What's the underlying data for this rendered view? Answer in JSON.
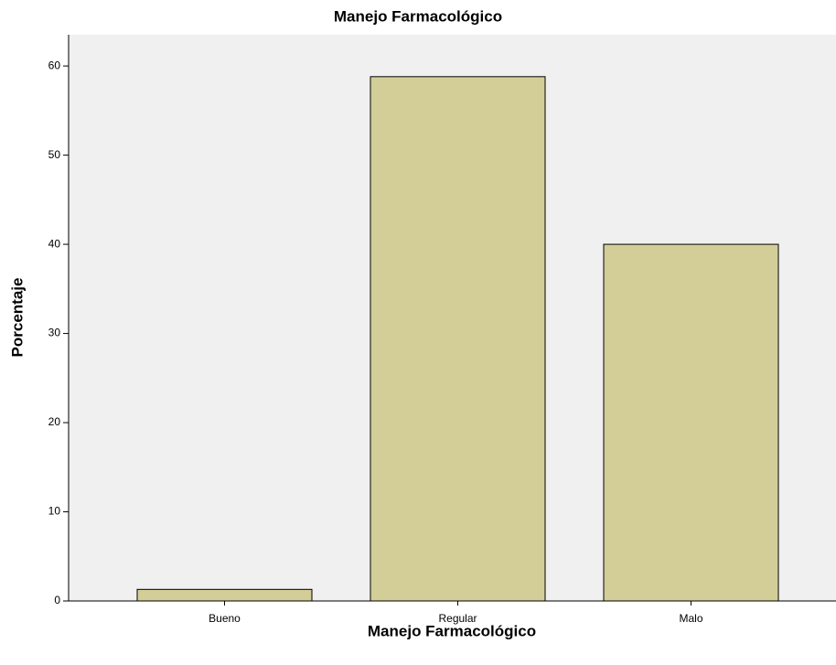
{
  "chart_data": {
    "type": "bar",
    "title": "Manejo Farmacológico",
    "x_label": "Manejo Farmacológico",
    "y_label": "Porcentaje",
    "categories": [
      "Bueno",
      "Regular",
      "Malo"
    ],
    "values": [
      1.3,
      58.8,
      40.0
    ],
    "color": "#d3ce98",
    "ylim": [
      0,
      63.5
    ],
    "yticks": [
      0,
      10,
      20,
      30,
      40,
      50,
      60
    ],
    "grid": false
  }
}
